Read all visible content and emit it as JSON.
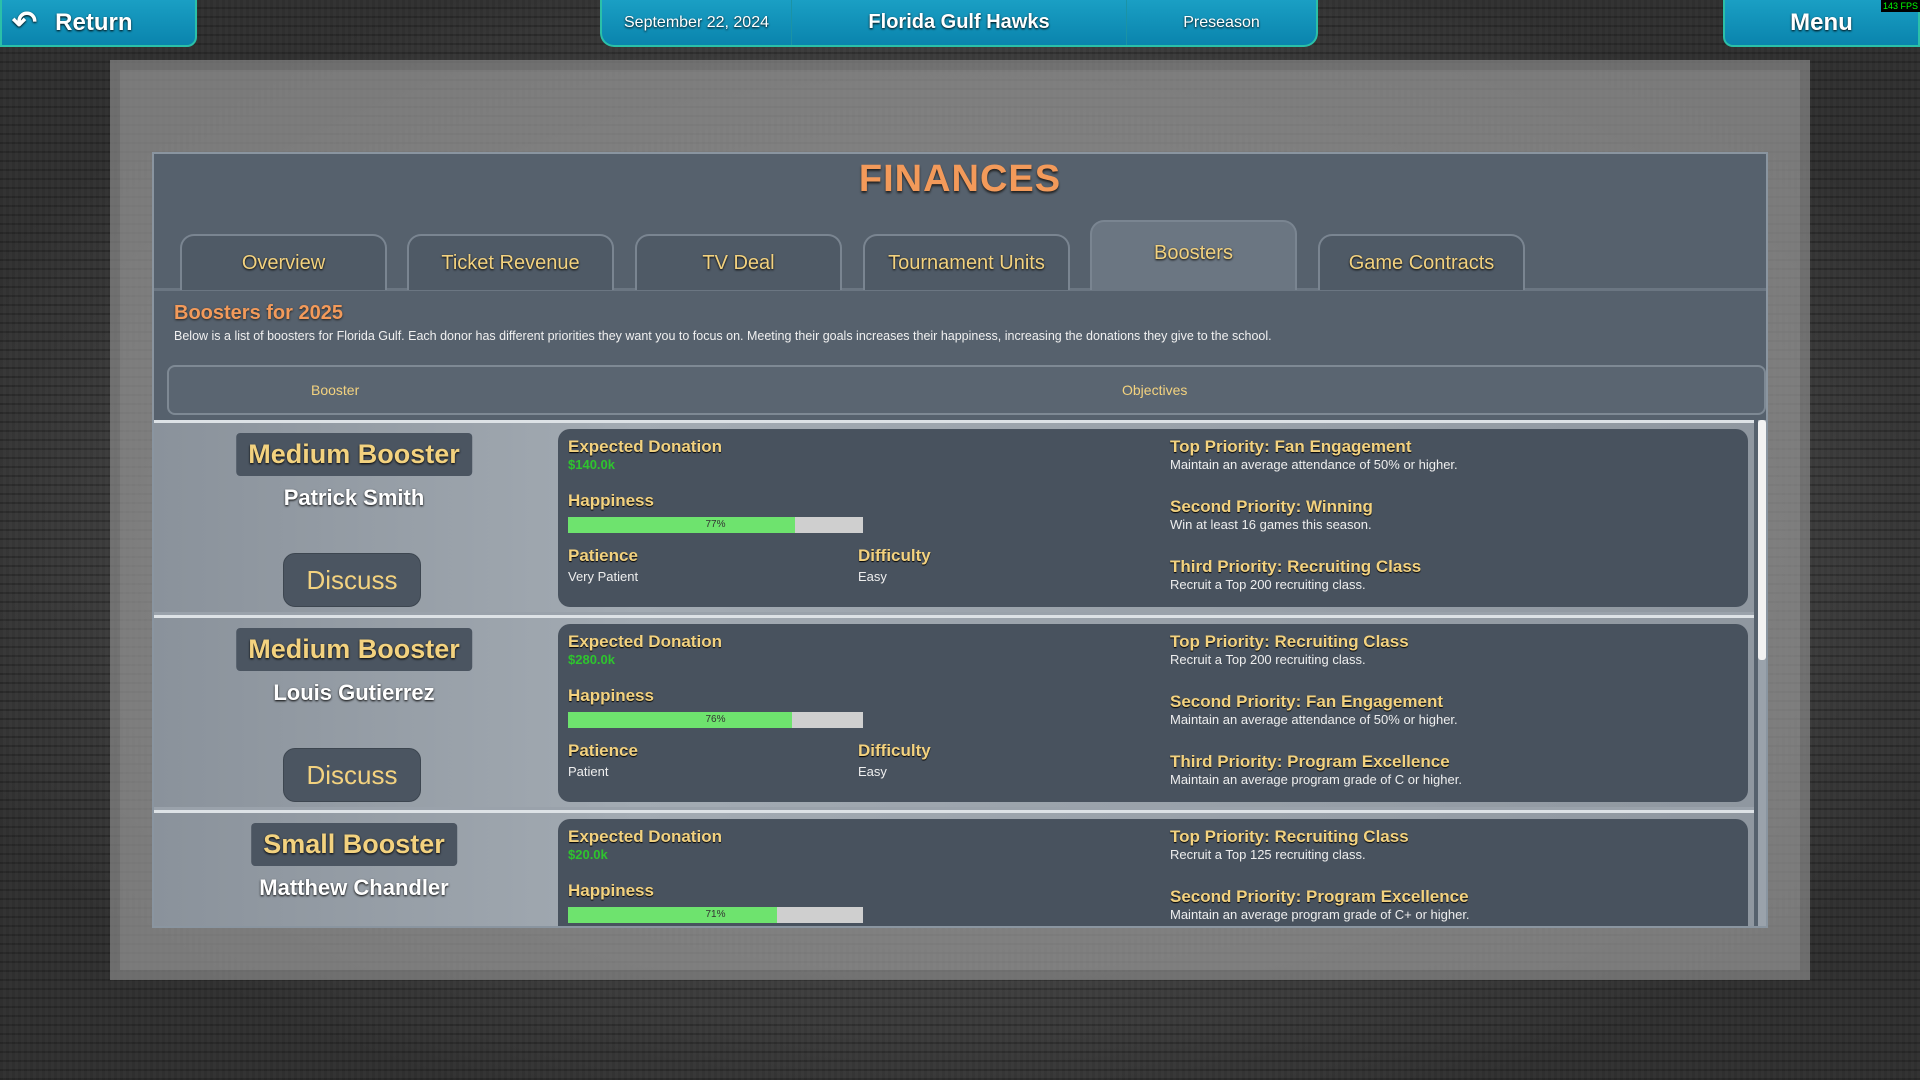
{
  "topbar": {
    "return_label": "Return",
    "date": "September 22, 2024",
    "team": "Florida Gulf Hawks",
    "phase": "Preseason",
    "menu_label": "Menu",
    "fps": "143 FPS"
  },
  "title": "FINANCES",
  "tabs": [
    {
      "label": "Overview"
    },
    {
      "label": "Ticket Revenue"
    },
    {
      "label": "TV Deal"
    },
    {
      "label": "Tournament Units"
    },
    {
      "label": "Boosters",
      "active": true
    },
    {
      "label": "Game Contracts"
    }
  ],
  "section": {
    "heading": "Boosters for 2025",
    "description": "Below is a list of boosters for Florida Gulf. Each donor has different priorities they want you to focus on. Meeting their goals increases their happiness, increasing the donations they give to the school."
  },
  "columns": {
    "booster": "Booster",
    "objectives": "Objectives"
  },
  "labels": {
    "expected_donation": "Expected Donation",
    "happiness": "Happiness",
    "patience": "Patience",
    "difficulty": "Difficulty",
    "discuss": "Discuss"
  },
  "boosters": [
    {
      "type": "Medium Booster",
      "name": "Patrick Smith",
      "donation": "$140.0k",
      "happiness": 77,
      "happiness_label": "77%",
      "patience": "Very Patient",
      "difficulty": "Easy",
      "priorities": [
        {
          "title": "Top Priority: Fan Engagement",
          "desc": "Maintain an average attendance of 50% or higher."
        },
        {
          "title": "Second Priority: Winning",
          "desc": "Win at least 16 games this season."
        },
        {
          "title": "Third Priority: Recruiting Class",
          "desc": "Recruit a Top 200 recruiting class."
        }
      ]
    },
    {
      "type": "Medium Booster",
      "name": "Louis Gutierrez",
      "donation": "$280.0k",
      "happiness": 76,
      "happiness_label": "76%",
      "patience": "Patient",
      "difficulty": "Easy",
      "priorities": [
        {
          "title": "Top Priority: Recruiting Class",
          "desc": "Recruit a Top 200 recruiting class."
        },
        {
          "title": "Second Priority: Fan Engagement",
          "desc": "Maintain an average attendance of 50% or higher."
        },
        {
          "title": "Third Priority: Program Excellence",
          "desc": "Maintain an average program grade of C or higher."
        }
      ]
    },
    {
      "type": "Small Booster",
      "name": "Matthew Chandler",
      "donation": "$20.0k",
      "happiness": 71,
      "happiness_label": "71%",
      "priorities": [
        {
          "title": "Top Priority: Recruiting Class",
          "desc": "Recruit a Top 125 recruiting class."
        },
        {
          "title": "Second Priority: Program Excellence",
          "desc": "Maintain an average program grade of C+ or higher."
        }
      ]
    }
  ],
  "colors": {
    "accent": "#f39a5a",
    "gold": "#f3d27f",
    "topbar": "#0a84ad",
    "happiness_fill": "#6ee36e",
    "donation": "#2ec42e"
  }
}
